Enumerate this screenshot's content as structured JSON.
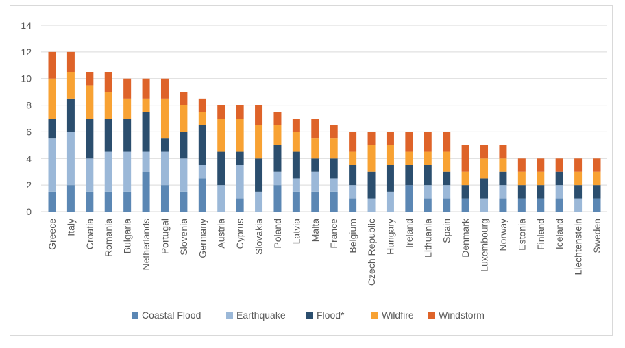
{
  "chart_data": {
    "type": "bar",
    "stacked": true,
    "title": "",
    "xlabel": "",
    "ylabel": "",
    "ylim": [
      0,
      14
    ],
    "yticks": [
      0,
      2,
      4,
      6,
      8,
      10,
      12,
      14
    ],
    "grid": true,
    "legend_position": "bottom",
    "categories": [
      "Greece",
      "Italy",
      "Croatia",
      "Romania",
      "Bulgaria",
      "Netherlands",
      "Portugal",
      "Slovenia",
      "Germany",
      "Austria",
      "Cyprus",
      "Slovakia",
      "Poland",
      "Latvia",
      "Malta",
      "France",
      "Belgium",
      "Czech Republic",
      "Hungary",
      "Ireland",
      "Lithuania",
      "Spain",
      "Denmark",
      "Luxembourg",
      "Norway",
      "Estonia",
      "Finland",
      "Iceland",
      "Liechtenstein",
      "Sweden"
    ],
    "series": [
      {
        "name": "Coastal Flood",
        "color": "#5b87b4",
        "values": [
          1.5,
          2,
          1.5,
          1.5,
          1.5,
          3,
          2,
          1.5,
          2.5,
          0,
          1,
          0,
          2,
          1.5,
          1.5,
          1.5,
          1,
          0,
          0,
          2,
          1,
          1,
          1,
          0,
          1,
          1,
          1,
          1,
          0,
          1
        ]
      },
      {
        "name": "Earthquake",
        "color": "#9bb8d8",
        "values": [
          4,
          4,
          2.5,
          3,
          3,
          1.5,
          2.5,
          2.5,
          1,
          2,
          2.5,
          1.5,
          1,
          1,
          1.5,
          1,
          1,
          1,
          1.5,
          0,
          1,
          1,
          0,
          1,
          1,
          0,
          0,
          1,
          1,
          0
        ]
      },
      {
        "name": "Flood*",
        "color": "#2b4e6e",
        "values": [
          1.5,
          2.5,
          3,
          2.5,
          2.5,
          3,
          1,
          2,
          3,
          2.5,
          1,
          2.5,
          2,
          2,
          1,
          1.5,
          1.5,
          2,
          2,
          1.5,
          1.5,
          1,
          1,
          1.5,
          1,
          1,
          1,
          1,
          1,
          1
        ]
      },
      {
        "name": "Wildfire",
        "color": "#f8a233",
        "values": [
          3,
          2,
          2.5,
          2,
          1.5,
          1,
          3,
          2,
          1,
          2.5,
          2.5,
          2.5,
          1.5,
          1.5,
          1.5,
          1.5,
          1,
          2,
          1.5,
          1,
          1,
          1.5,
          1,
          1.5,
          1,
          1,
          1,
          0,
          1,
          1
        ]
      },
      {
        "name": "Windstorm",
        "color": "#de6329",
        "values": [
          2,
          1.5,
          1,
          1.5,
          1.5,
          1.5,
          1.5,
          1,
          1,
          1,
          1,
          1.5,
          1,
          1,
          1.5,
          1,
          1.5,
          1,
          1,
          1.5,
          1.5,
          1.5,
          2,
          1,
          1,
          1,
          1,
          1,
          1,
          1
        ]
      }
    ]
  }
}
